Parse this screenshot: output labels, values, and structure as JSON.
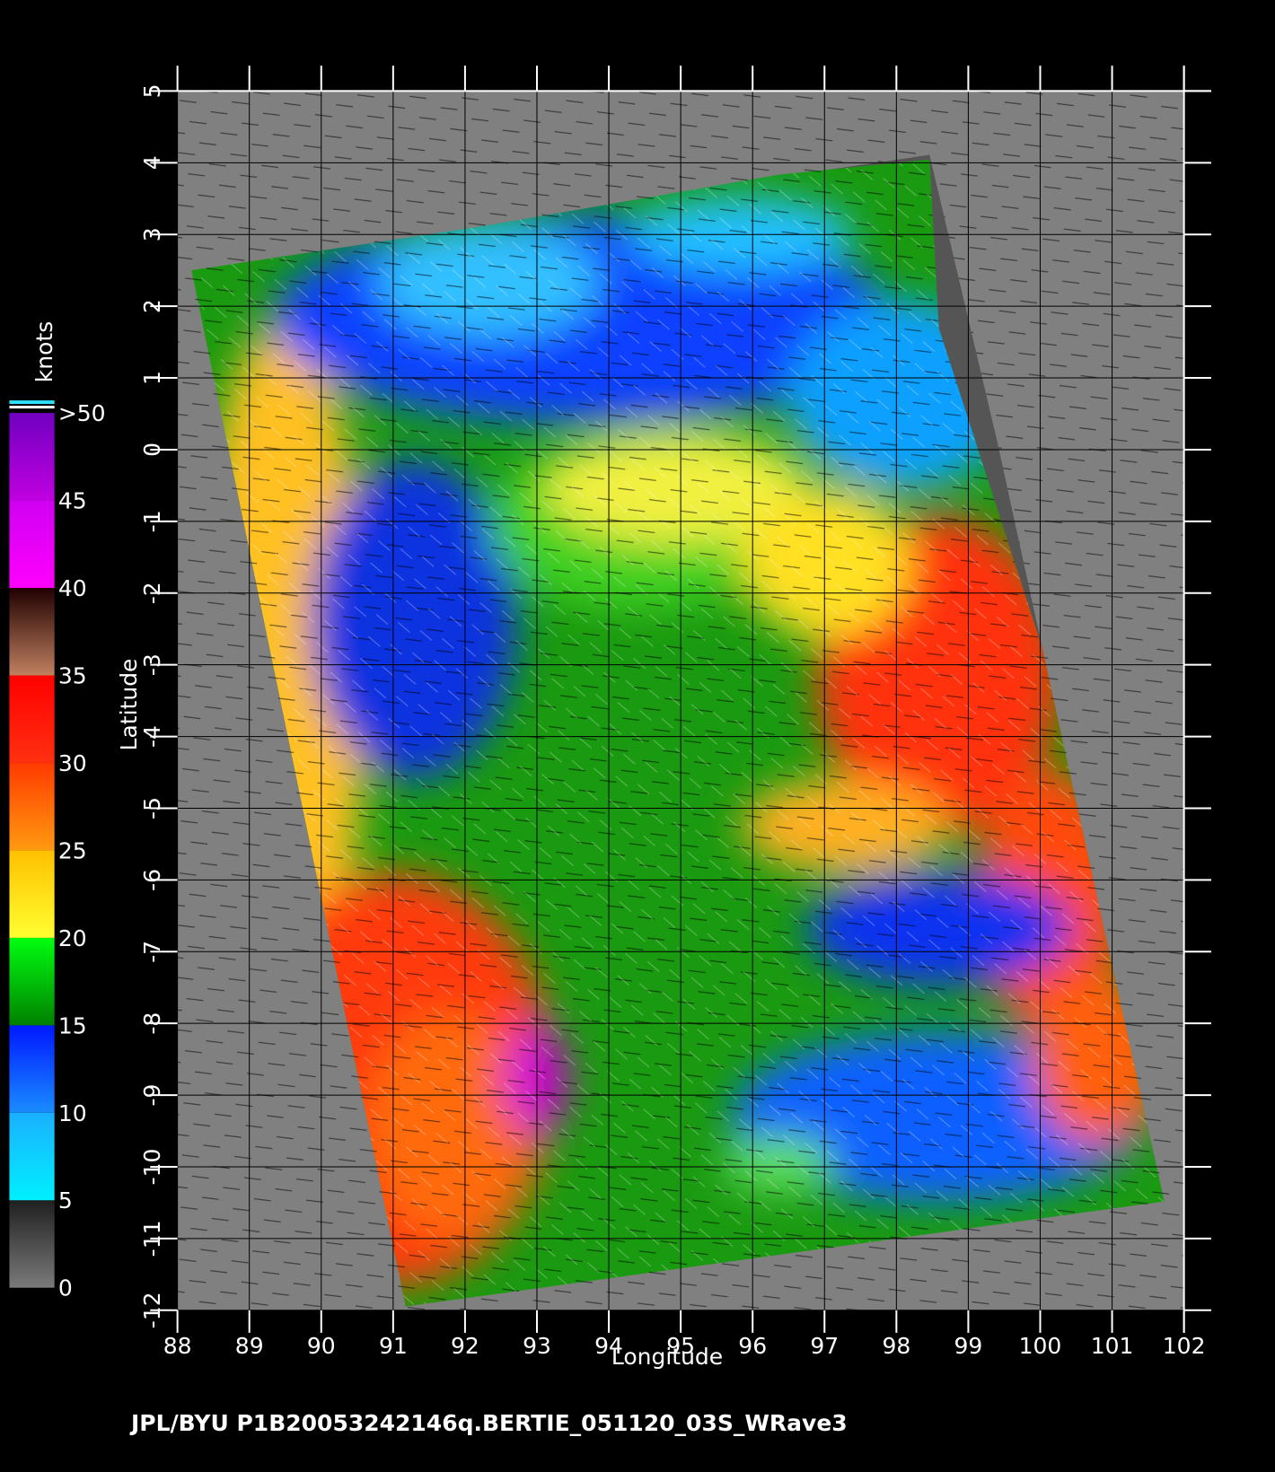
{
  "map": {
    "xlabel": "Longitude",
    "ylabel": "Latitude",
    "xlim": [
      88,
      102
    ],
    "ylim": [
      -12,
      5
    ],
    "xticks": [
      88,
      89,
      90,
      91,
      92,
      93,
      94,
      95,
      96,
      97,
      98,
      99,
      100,
      101,
      102
    ],
    "yticks": [
      -12,
      -11,
      -10,
      -9,
      -8,
      -7,
      -6,
      -5,
      -4,
      -3,
      -2,
      -1,
      0,
      1,
      2,
      3,
      4,
      5
    ]
  },
  "colorbar": {
    "title": "knots",
    "lim": [
      0,
      50
    ],
    "ticks": [
      0,
      5,
      10,
      15,
      20,
      25,
      30,
      35,
      40,
      45,
      {
        "value": 50,
        "label": ">50"
      }
    ],
    "colors": [
      [
        "#7a7a7a",
        "#202020"
      ],
      [
        "#00f0ff",
        "#1ab0ff"
      ],
      [
        "#1a8cff",
        "#0018ff"
      ],
      [
        "#008000",
        "#00ff10"
      ],
      [
        "#ffff30",
        "#ffc000"
      ],
      [
        "#ff9a10",
        "#ff3a00"
      ],
      [
        "#ff3010",
        "#ff0000"
      ],
      [
        "#c08060",
        "#200000"
      ],
      [
        "#ff00ff",
        "#d000f0"
      ],
      [
        "#c000e0",
        "#7000c0"
      ]
    ]
  },
  "footer": "JPL/BYU  P1B20053242146q.BERTIE_051120_03S_WRave3"
}
